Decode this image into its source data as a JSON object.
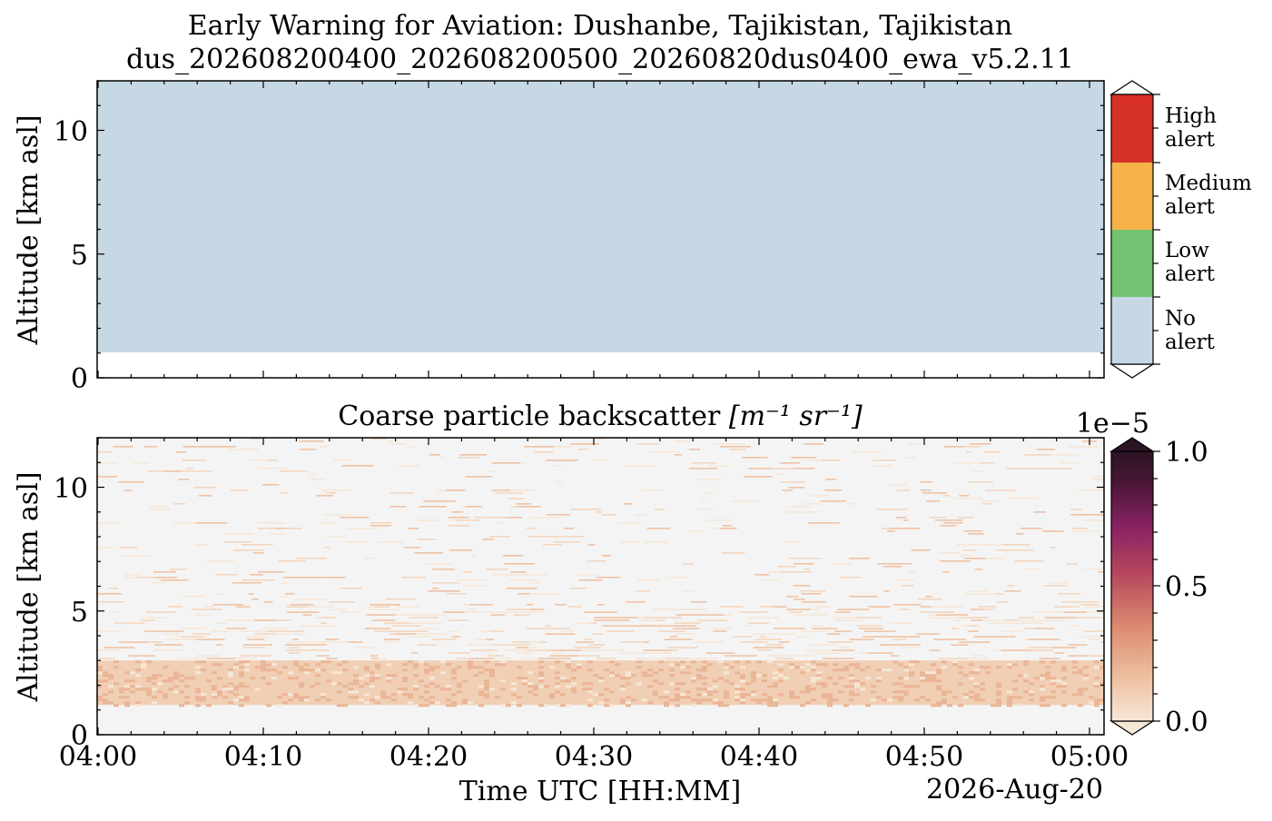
{
  "chart_data": [
    {
      "type": "heatmap",
      "title": "Early Warning for Aviation: Dushanbe, Tajikistan, Tajikistan",
      "subtitle": "dus_202608200400_202608200500_20260820dus0400_ewa_v5.2.11",
      "ylabel": "Altitude [km asl]",
      "xlim": [
        "04:00",
        "05:00"
      ],
      "ylim": [
        0,
        12
      ],
      "y_ticks": [
        "0",
        "5",
        "10"
      ],
      "fill": {
        "category": "No alert",
        "altitude_from_km": 1.0,
        "altitude_to_km": 12
      },
      "colorbar": {
        "categories": [
          {
            "label_line1": "High",
            "label_line2": "alert",
            "color": "#d73027"
          },
          {
            "label_line1": "Medium",
            "label_line2": "alert",
            "color": "#f6b34a"
          },
          {
            "label_line1": "Low",
            "label_line2": "alert",
            "color": "#72c472"
          },
          {
            "label_line1": "No",
            "label_line2": "alert",
            "color": "#c5d8e4"
          }
        ]
      }
    },
    {
      "type": "heatmap",
      "title": "Coarse particle backscatter",
      "title_units": "[m⁻¹ sr⁻¹]",
      "xlabel": "Time UTC [HH:MM]",
      "ylabel": "Altitude [km asl]",
      "date_label": "2026-Aug-20",
      "x_ticks": [
        "04:00",
        "04:10",
        "04:20",
        "04:30",
        "04:40",
        "04:50",
        "05:00"
      ],
      "y_ticks": [
        "0",
        "5",
        "10"
      ],
      "ylim": [
        0,
        12
      ],
      "zlim": [
        0.0,
        1e-05
      ],
      "signal_profile": [
        {
          "from_km": 1.2,
          "to_km": 3.0,
          "level": 0.12
        },
        {
          "from_km": 3.0,
          "to_km": 5.2,
          "level": 0.05
        },
        {
          "from_km": 5.2,
          "to_km": 12.0,
          "level": 0.02
        }
      ],
      "colorbar": {
        "exponent_label": "1e−5",
        "tick_labels": [
          "1.0",
          "0.5",
          "0.0"
        ],
        "colors": [
          "#f6e7d7",
          "#efc3a4",
          "#dc8a6f",
          "#b5465d",
          "#892263",
          "#4a1737",
          "#2b1424"
        ]
      },
      "background_color": "#f4f4f4"
    }
  ]
}
